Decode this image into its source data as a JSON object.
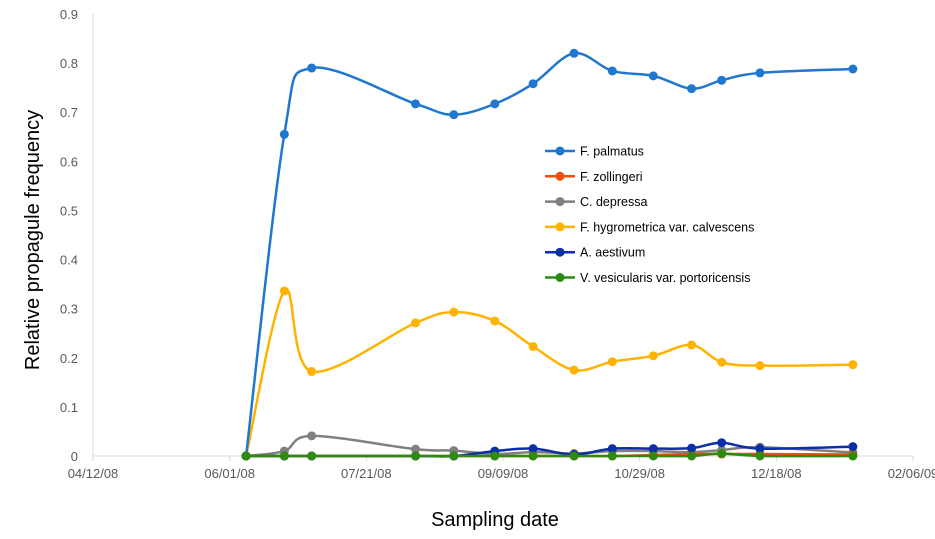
{
  "chart_data": {
    "type": "line",
    "title": "",
    "xlabel": "Sampling date",
    "ylabel": "Relative propagule frequency",
    "xlim": [
      "2008-04-12",
      "2009-02-06"
    ],
    "ylim": [
      0,
      0.9
    ],
    "x_ticks": [
      "04/12/08",
      "06/01/08",
      "07/21/08",
      "09/09/08",
      "10/29/08",
      "12/18/08",
      "02/06/09"
    ],
    "y_ticks": [
      "0",
      "0.1",
      "0.2",
      "0.3",
      "0.4",
      "0.5",
      "0.6",
      "0.7",
      "0.8",
      "0.9"
    ],
    "legend_position": "center-right",
    "grid": false,
    "x": [
      "2008-06-07",
      "2008-06-21",
      "2008-07-01",
      "2008-08-08",
      "2008-08-22",
      "2008-09-06",
      "2008-09-20",
      "2008-10-05",
      "2008-10-19",
      "2008-11-03",
      "2008-11-17",
      "2008-11-28",
      "2008-12-12",
      "2009-01-15"
    ],
    "series": [
      {
        "name": "F. palmatus",
        "color": "#1F77D0",
        "values": [
          0,
          0.655,
          0.79,
          0.717,
          0.695,
          0.717,
          0.758,
          0.82,
          0.784,
          0.774,
          0.748,
          0.765,
          0.78,
          0.788
        ]
      },
      {
        "name": "F. zollingeri",
        "color": "#F04E0E",
        "values": [
          0,
          0,
          0,
          0,
          0,
          0,
          0,
          0,
          0,
          0.002,
          0.004,
          0.004,
          0.004,
          0.003
        ]
      },
      {
        "name": "C. depressa",
        "color": "#808080",
        "values": [
          0,
          0.01,
          0.041,
          0.014,
          0.011,
          0.004,
          0.008,
          0.005,
          0.01,
          0.01,
          0.008,
          0.012,
          0.018,
          0.007
        ]
      },
      {
        "name": "F. hygrometrica var. calvescens",
        "color": "#FFB300",
        "values": [
          0,
          0.336,
          0.172,
          0.271,
          0.293,
          0.275,
          0.223,
          0.175,
          0.192,
          0.204,
          0.226,
          0.191,
          0.184,
          0.186
        ]
      },
      {
        "name": "A. aestivum",
        "color": "#0B2FA8",
        "values": [
          0,
          0,
          0,
          0,
          0,
          0.01,
          0.015,
          0.003,
          0.015,
          0.015,
          0.016,
          0.027,
          0.015,
          0.019
        ]
      },
      {
        "name": "V. vesicularis var. portoricensis",
        "color": "#2E8B10",
        "values": [
          0,
          0,
          0,
          0,
          0,
          0,
          0,
          0,
          0,
          0,
          0,
          0.005,
          0,
          0
        ]
      }
    ]
  }
}
